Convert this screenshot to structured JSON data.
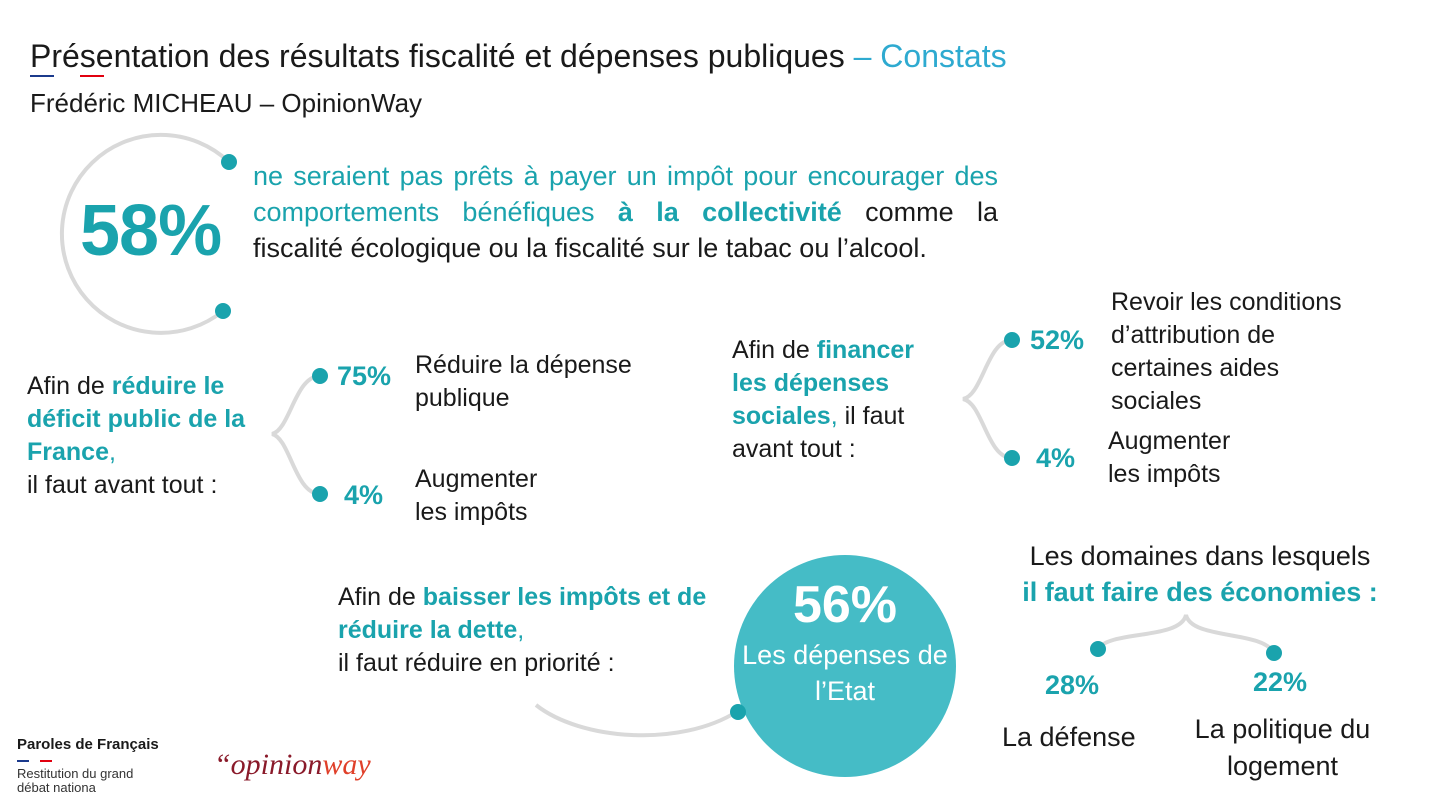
{
  "header": {
    "title_main": "Présentation des résultats fiscalité et dépenses publiques",
    "title_suffix": " – Constats",
    "subtitle": "Frédéric MICHEAU – OpinionWay"
  },
  "stat58": {
    "value": "58%",
    "text_teal": "ne seraient pas prêts à payer un impôt pour encourager des comportements bénéfiques",
    "text_teal_bold": "à la collectivité",
    "text_dark": " comme la fiscalité écologique ou la fiscalité sur le tabac ou l’alcool."
  },
  "deficit": {
    "intro_prefix": "Afin de ",
    "intro_highlight": "réduire le déficit public de la France",
    "intro_comma": ",",
    "intro_suffix": "il faut avant tout :",
    "options": [
      {
        "pct": "75%",
        "label": "Réduire la dépense publique"
      },
      {
        "pct": "4%",
        "label": "Augmenter les impôts"
      }
    ]
  },
  "social": {
    "intro_prefix": "Afin de ",
    "intro_highlight": "financer les dépenses sociales",
    "intro_comma": ",",
    "intro_suffix": " il faut avant tout :",
    "options": [
      {
        "pct": "52%",
        "label": "Revoir les conditions d’attribution de certaines aides sociales"
      },
      {
        "pct": "4%",
        "label": "Augmenter les impôts"
      }
    ]
  },
  "taxes": {
    "intro_prefix": "Afin de ",
    "intro_highlight": "baisser les impôts et de réduire la dette",
    "intro_comma": ",",
    "intro_suffix": "il faut réduire en priorité :",
    "circle_pct": "56%",
    "circle_label": "Les dépenses de l’Etat"
  },
  "domaines": {
    "title_line1": "Les domaines dans lesquels",
    "title_highlight": "il faut faire des économies",
    "title_colon": " :",
    "items": [
      {
        "pct": "28%",
        "label": "La défense"
      },
      {
        "pct": "22%",
        "label": "La politique du logement"
      }
    ]
  },
  "footer": {
    "brand": "Paroles de Français",
    "brand_sub_1": "Restitution du grand",
    "brand_sub_2": "débat nationa",
    "logo_left": "“opinion",
    "logo_right": "way"
  },
  "colors": {
    "teal": "#1aa3ad",
    "circle_fill": "#45bcc6",
    "connector_grey": "#d9d9d9"
  }
}
